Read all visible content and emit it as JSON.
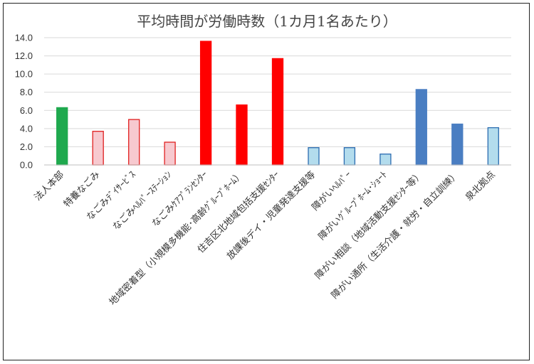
{
  "chart_data": {
    "type": "bar",
    "title": "平均時間が労働時数（1カ月1名あたり）",
    "ylim": [
      0,
      14
    ],
    "yticks": [
      "0.0",
      "2.0",
      "4.0",
      "6.0",
      "8.0",
      "10.0",
      "12.0",
      "14.0"
    ],
    "grid": true,
    "legend": "none",
    "categories": [
      "法人本部",
      "特養なごみ",
      "なごみﾃﾞｲｻｰﾋﾞｽ",
      "なごみﾍﾙﾊﾟｰｽﾃｰｼｮﾝ",
      "なごみｹｱﾌﾟﾗﾝｾﾝﾀｰ",
      "地域密着型（小規模多機能･高齢ｸﾞﾙｰﾌﾟﾎｰﾑ）",
      "住吉区北地域包括支援ｾﾝﾀｰ",
      "放課後デイ・児童発達支援等",
      "障がいﾍﾙﾊﾟｰ",
      "障がいｸﾞﾙｰﾌﾟﾎｰﾑ･ｼｮｰﾄ",
      "障がい相談（地域活動支援ｾﾝﾀｰ等）",
      "障がい通所（生活介護・就労・自立訓練）",
      "泉北拠点"
    ],
    "values": [
      6.3,
      3.7,
      5.0,
      2.5,
      13.6,
      6.6,
      11.7,
      1.9,
      1.9,
      1.2,
      8.3,
      4.5,
      4.1
    ],
    "bar_colors": [
      {
        "fill": "#1fa94e",
        "stroke": "#1fa94e"
      },
      {
        "fill": "#f7c9cf",
        "stroke": "#e02020"
      },
      {
        "fill": "#f7c9cf",
        "stroke": "#e02020"
      },
      {
        "fill": "#f7c9cf",
        "stroke": "#e02020"
      },
      {
        "fill": "#ff0000",
        "stroke": "#ff0000"
      },
      {
        "fill": "#ff0000",
        "stroke": "#ff0000"
      },
      {
        "fill": "#ff0000",
        "stroke": "#ff0000"
      },
      {
        "fill": "#b3dced",
        "stroke": "#2b6cb0"
      },
      {
        "fill": "#b3dced",
        "stroke": "#2b6cb0"
      },
      {
        "fill": "#b3dced",
        "stroke": "#2b6cb0"
      },
      {
        "fill": "#4a7ec2",
        "stroke": "#4a7ec2"
      },
      {
        "fill": "#4a7ec2",
        "stroke": "#4a7ec2"
      },
      {
        "fill": "#b3dced",
        "stroke": "#2b6cb0"
      }
    ]
  }
}
